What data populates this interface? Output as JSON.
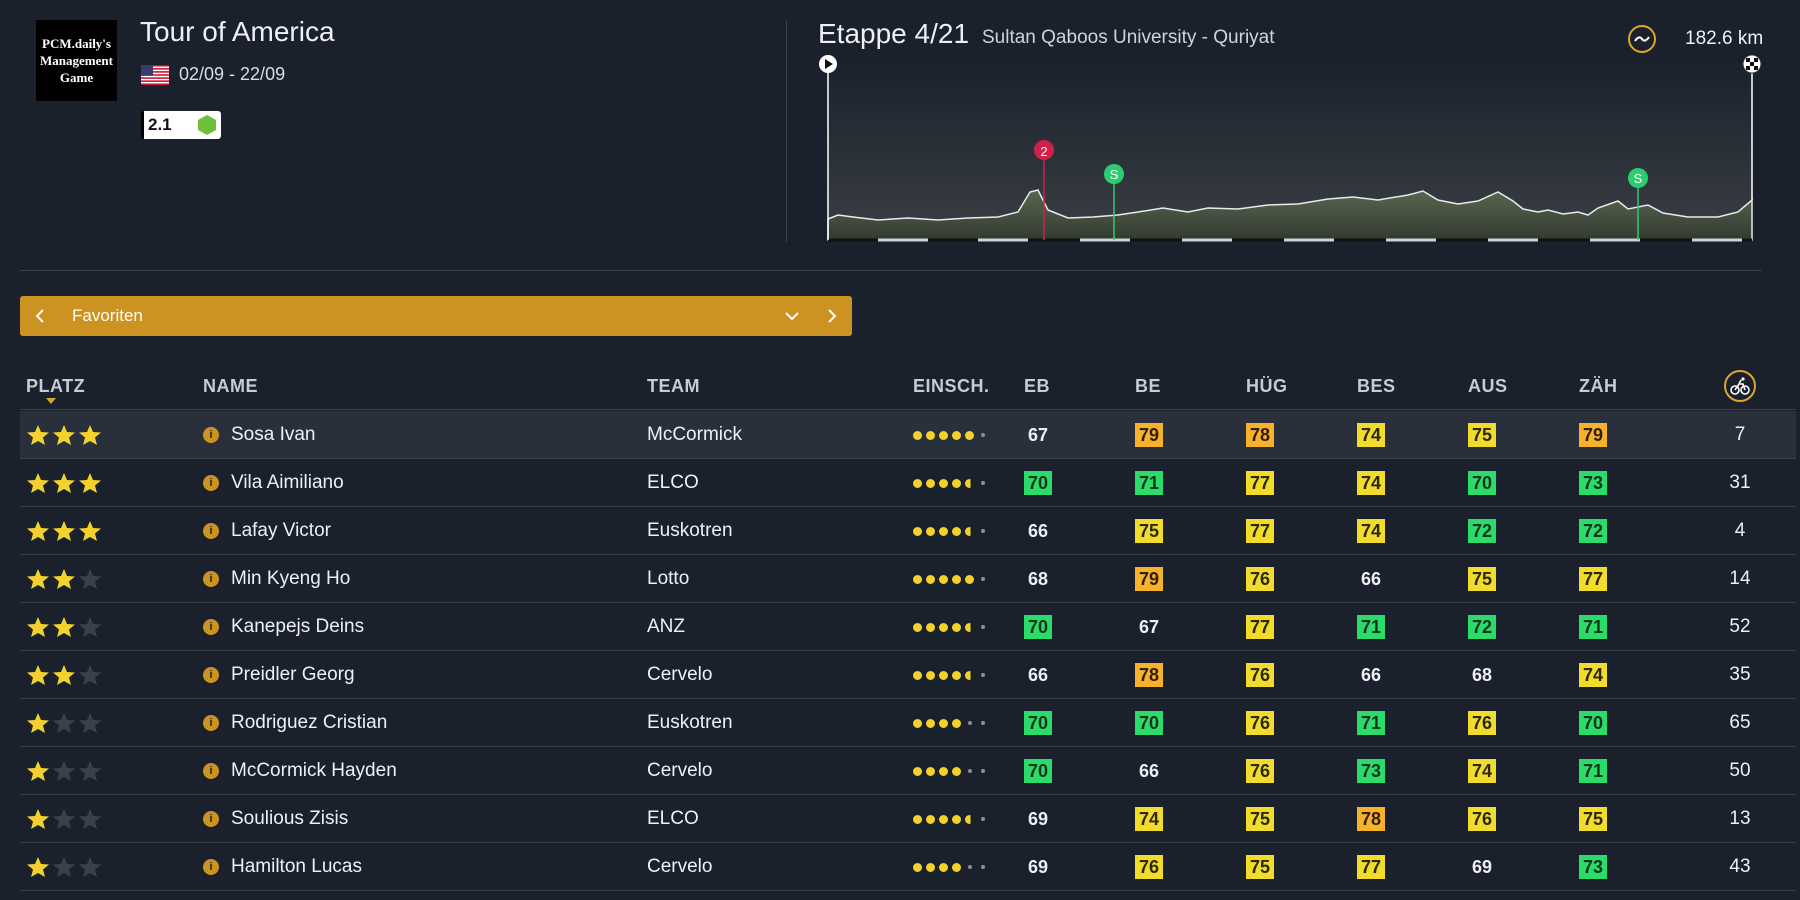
{
  "race": {
    "logo_text": "PCM.daily's Management Game",
    "title": "Tour of America",
    "dates": "02/09 - 22/09",
    "category": "2.1"
  },
  "stage": {
    "title": "Etappe 4/21",
    "route": "Sultan Qaboos University - Quriyat",
    "distance": "182.6 km",
    "markers": [
      {
        "label": "2",
        "color": "#d1204a"
      },
      {
        "label": "S",
        "color": "#2ecc71"
      },
      {
        "label": "S",
        "color": "#2ecc71"
      }
    ]
  },
  "selector": {
    "label": "Favoriten"
  },
  "table": {
    "headers": {
      "platz": "PLATZ",
      "name": "NAME",
      "team": "TEAM",
      "einsch": "EINSCH.",
      "eb": "EB",
      "be": "BE",
      "hug": "HÜG",
      "bes": "BES",
      "aus": "AUS",
      "zah": "ZÄH"
    },
    "rows": [
      {
        "stars": 3,
        "name": "Sosa Ivan",
        "team": "McCormick",
        "dots": [
          1,
          1,
          1,
          1,
          1,
          0
        ],
        "eb": {
          "v": "67",
          "c": "n"
        },
        "be": {
          "v": "79",
          "c": "o"
        },
        "hug": {
          "v": "78",
          "c": "o"
        },
        "bes": {
          "v": "74",
          "c": "y"
        },
        "aus": {
          "v": "75",
          "c": "y"
        },
        "zah": {
          "v": "79",
          "c": "o"
        },
        "num": "7"
      },
      {
        "stars": 3,
        "name": "Vila Aimiliano",
        "team": "ELCO",
        "dots": [
          1,
          1,
          1,
          1,
          0.5,
          0
        ],
        "eb": {
          "v": "70",
          "c": "g"
        },
        "be": {
          "v": "71",
          "c": "g"
        },
        "hug": {
          "v": "77",
          "c": "y"
        },
        "bes": {
          "v": "74",
          "c": "y"
        },
        "aus": {
          "v": "70",
          "c": "g"
        },
        "zah": {
          "v": "73",
          "c": "g"
        },
        "num": "31"
      },
      {
        "stars": 3,
        "name": "Lafay Victor",
        "team": "Euskotren",
        "dots": [
          1,
          1,
          1,
          1,
          0.5,
          0
        ],
        "eb": {
          "v": "66",
          "c": "n"
        },
        "be": {
          "v": "75",
          "c": "y"
        },
        "hug": {
          "v": "77",
          "c": "y"
        },
        "bes": {
          "v": "74",
          "c": "y"
        },
        "aus": {
          "v": "72",
          "c": "g"
        },
        "zah": {
          "v": "72",
          "c": "g"
        },
        "num": "4"
      },
      {
        "stars": 2,
        "name": "Min Kyeng Ho",
        "team": "Lotto",
        "dots": [
          1,
          1,
          1,
          1,
          1,
          0
        ],
        "eb": {
          "v": "68",
          "c": "n"
        },
        "be": {
          "v": "79",
          "c": "o"
        },
        "hug": {
          "v": "76",
          "c": "y"
        },
        "bes": {
          "v": "66",
          "c": "n"
        },
        "aus": {
          "v": "75",
          "c": "y"
        },
        "zah": {
          "v": "77",
          "c": "y"
        },
        "num": "14"
      },
      {
        "stars": 2,
        "name": "Kanepejs Deins",
        "team": "ANZ",
        "dots": [
          1,
          1,
          1,
          1,
          0.5,
          0
        ],
        "eb": {
          "v": "70",
          "c": "g"
        },
        "be": {
          "v": "67",
          "c": "n"
        },
        "hug": {
          "v": "77",
          "c": "y"
        },
        "bes": {
          "v": "71",
          "c": "g"
        },
        "aus": {
          "v": "72",
          "c": "g"
        },
        "zah": {
          "v": "71",
          "c": "g"
        },
        "num": "52"
      },
      {
        "stars": 2,
        "name": "Preidler Georg",
        "team": "Cervelo",
        "dots": [
          1,
          1,
          1,
          1,
          0.5,
          0
        ],
        "eb": {
          "v": "66",
          "c": "n"
        },
        "be": {
          "v": "78",
          "c": "o"
        },
        "hug": {
          "v": "76",
          "c": "y"
        },
        "bes": {
          "v": "66",
          "c": "n"
        },
        "aus": {
          "v": "68",
          "c": "n"
        },
        "zah": {
          "v": "74",
          "c": "y"
        },
        "num": "35"
      },
      {
        "stars": 1,
        "name": "Rodriguez Cristian",
        "team": "Euskotren",
        "dots": [
          1,
          1,
          1,
          1,
          0,
          0
        ],
        "eb": {
          "v": "70",
          "c": "g"
        },
        "be": {
          "v": "70",
          "c": "g"
        },
        "hug": {
          "v": "76",
          "c": "y"
        },
        "bes": {
          "v": "71",
          "c": "g"
        },
        "aus": {
          "v": "76",
          "c": "y"
        },
        "zah": {
          "v": "70",
          "c": "g"
        },
        "num": "65"
      },
      {
        "stars": 1,
        "name": "McCormick Hayden",
        "team": "Cervelo",
        "dots": [
          1,
          1,
          1,
          1,
          0,
          0
        ],
        "eb": {
          "v": "70",
          "c": "g"
        },
        "be": {
          "v": "66",
          "c": "n"
        },
        "hug": {
          "v": "76",
          "c": "y"
        },
        "bes": {
          "v": "73",
          "c": "g"
        },
        "aus": {
          "v": "74",
          "c": "y"
        },
        "zah": {
          "v": "71",
          "c": "g"
        },
        "num": "50"
      },
      {
        "stars": 1,
        "name": "Soulious Zisis",
        "team": "ELCO",
        "dots": [
          1,
          1,
          1,
          1,
          0.5,
          0
        ],
        "eb": {
          "v": "69",
          "c": "n"
        },
        "be": {
          "v": "74",
          "c": "y"
        },
        "hug": {
          "v": "75",
          "c": "y"
        },
        "bes": {
          "v": "78",
          "c": "o"
        },
        "aus": {
          "v": "76",
          "c": "y"
        },
        "zah": {
          "v": "75",
          "c": "y"
        },
        "num": "13"
      },
      {
        "stars": 1,
        "name": "Hamilton Lucas",
        "team": "Cervelo",
        "dots": [
          1,
          1,
          1,
          1,
          0,
          0
        ],
        "eb": {
          "v": "69",
          "c": "n"
        },
        "be": {
          "v": "76",
          "c": "y"
        },
        "hug": {
          "v": "75",
          "c": "y"
        },
        "bes": {
          "v": "77",
          "c": "y"
        },
        "aus": {
          "v": "69",
          "c": "n"
        },
        "zah": {
          "v": "73",
          "c": "g"
        },
        "num": "43"
      }
    ]
  },
  "colors": {
    "accent": "#cc9322",
    "stat_green": "#2cdc6a",
    "stat_yellow": "#f1db2b",
    "stat_orange": "#f7b12b",
    "star": "#f2d22b",
    "background": "#1b212c"
  }
}
